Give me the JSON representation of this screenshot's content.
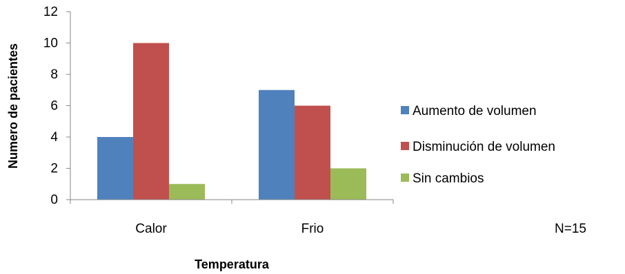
{
  "chart_data": {
    "type": "bar",
    "categories": [
      "Calor",
      "Frio"
    ],
    "series": [
      {
        "name": "Aumento de volumen",
        "values": [
          4,
          7
        ],
        "color": "#4F81BD"
      },
      {
        "name": "Disminución de volumen",
        "values": [
          10,
          6
        ],
        "color": "#C0504D"
      },
      {
        "name": "Sin cambios",
        "values": [
          1,
          2
        ],
        "color": "#9BBB59"
      }
    ],
    "xlabel": "Temperatura",
    "ylabel": "Numero de pacientes",
    "ylim": [
      0,
      12
    ],
    "yticks": [
      "0",
      "2",
      "4",
      "6",
      "8",
      "10",
      "12"
    ],
    "grid": false,
    "legend_position": "right",
    "annotation": "N=15"
  }
}
